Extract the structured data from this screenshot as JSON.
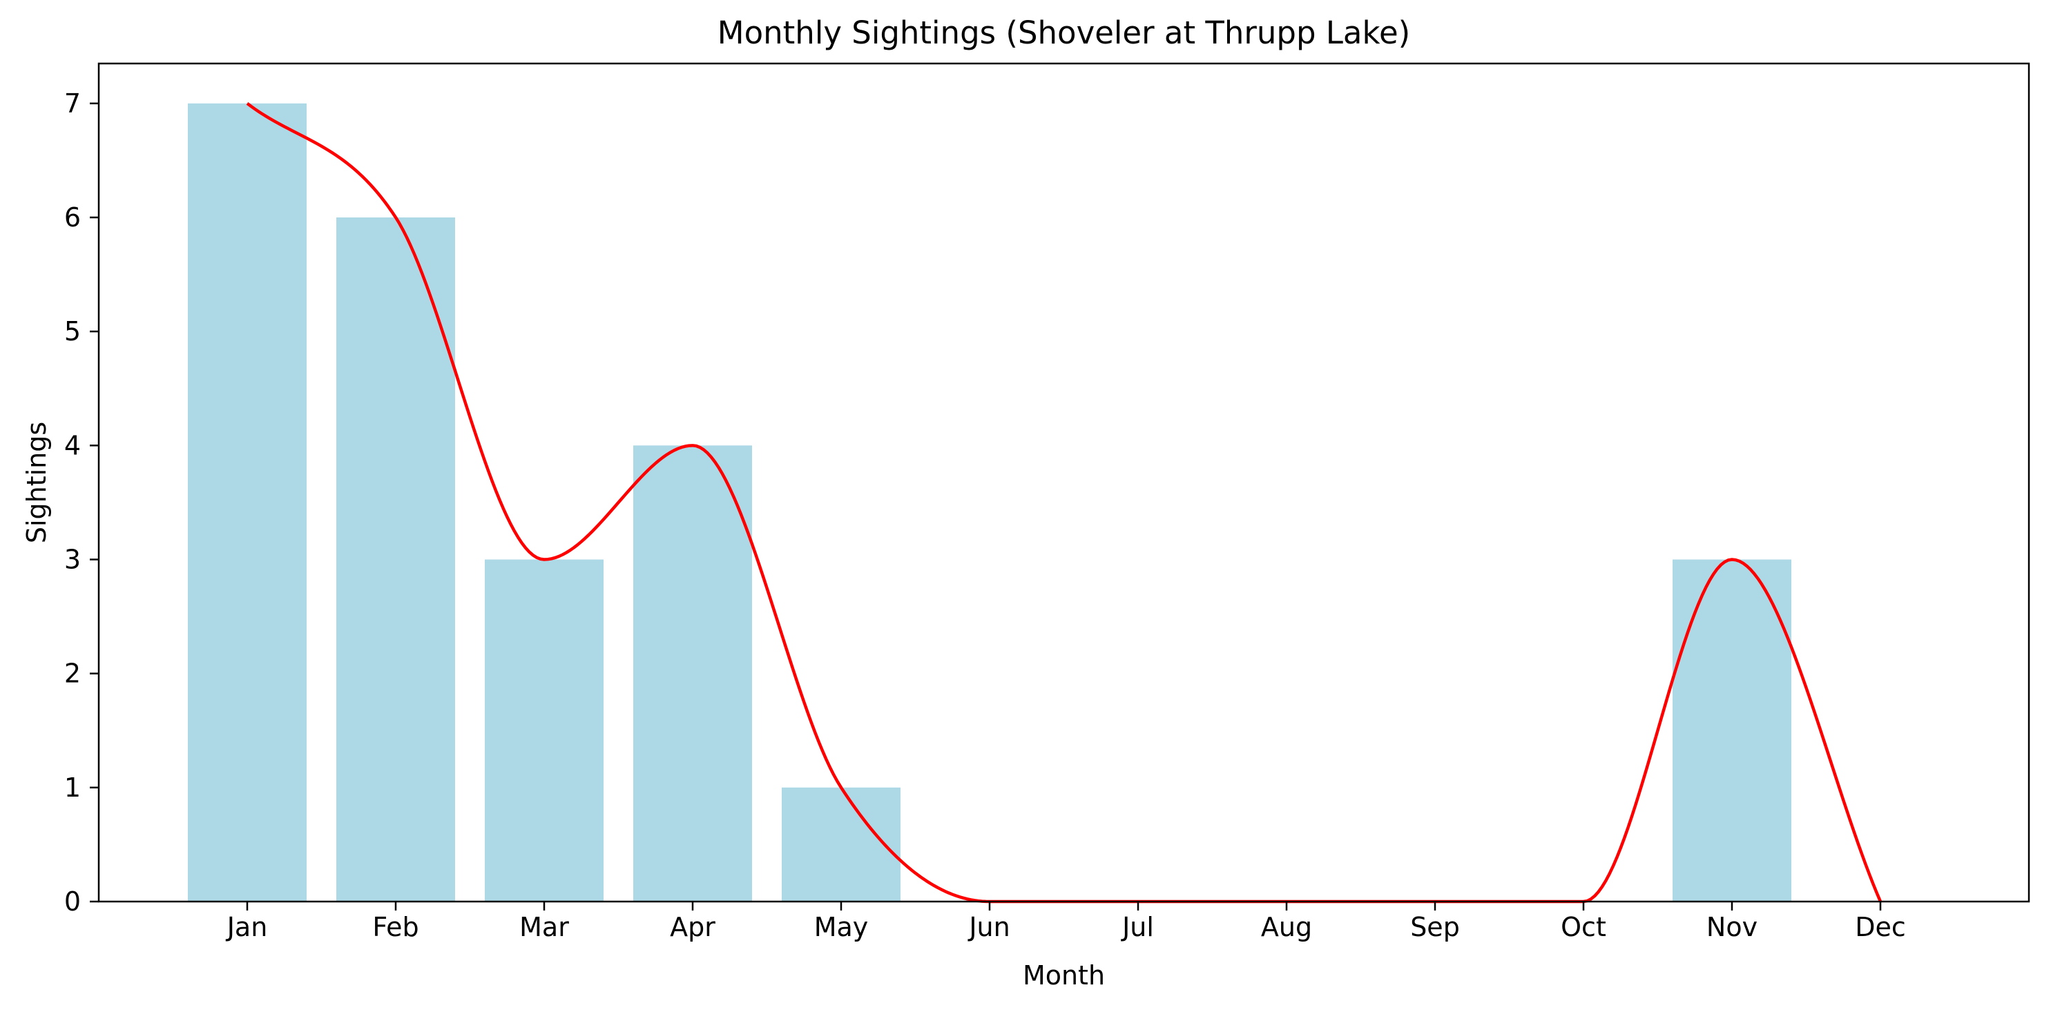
{
  "chart_data": {
    "type": "bar",
    "title": "Monthly Sightings (Shoveler at Thrupp Lake)",
    "xlabel": "Month",
    "ylabel": "Sightings",
    "categories": [
      "Jan",
      "Feb",
      "Mar",
      "Apr",
      "May",
      "Jun",
      "Jul",
      "Aug",
      "Sep",
      "Oct",
      "Nov",
      "Dec"
    ],
    "values": [
      7,
      6,
      3,
      4,
      1,
      0,
      0,
      0,
      0,
      0,
      3,
      0
    ],
    "yticks": [
      "0",
      "1",
      "2",
      "3",
      "4",
      "5",
      "6",
      "7"
    ],
    "ylim": [
      0,
      7.35
    ],
    "grid": false,
    "overlay_line": {
      "type": "smoothed line",
      "values": [
        7,
        6,
        3,
        4,
        1,
        0,
        0,
        0,
        0,
        0,
        3,
        0
      ]
    },
    "colors": {
      "bar": "#add8e6",
      "line": "#ff0000",
      "axes": "#000000"
    }
  }
}
